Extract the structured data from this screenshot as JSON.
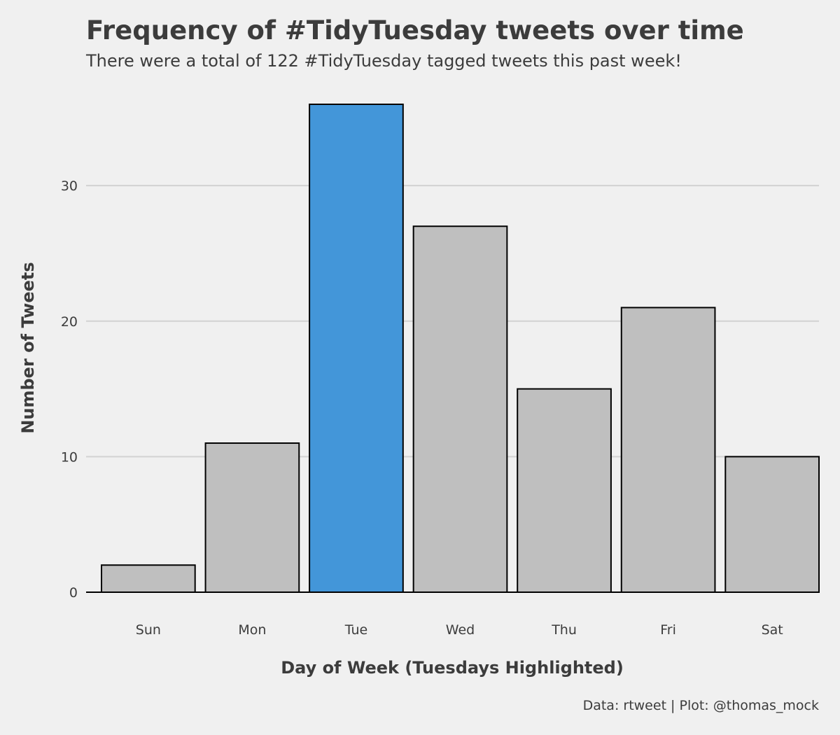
{
  "chart_data": {
    "type": "bar",
    "title": "Frequency of #TidyTuesday tweets over time",
    "subtitle": "There were a total of 122 #TidyTuesday tagged tweets this past week!",
    "caption": "Data: rtweet | Plot: @thomas_mock",
    "xlabel": "Day of Week (Tuesdays Highlighted)",
    "ylabel": "Number of Tweets",
    "categories": [
      "Sun",
      "Mon",
      "Tue",
      "Wed",
      "Thu",
      "Fri",
      "Sat"
    ],
    "values": [
      2,
      11,
      36,
      27,
      15,
      21,
      10
    ],
    "highlighted": [
      "Tue"
    ],
    "ylim": [
      0,
      36
    ],
    "y_ticks": [
      0,
      10,
      20,
      30
    ],
    "y_tick_labels": [
      "0",
      "10",
      "20",
      "30"
    ],
    "grid": "horizontal",
    "legend": "none",
    "colors": {
      "background": "#f0f0f0",
      "bar": "#bfbfbf",
      "highlight": "#4396d9",
      "bar_outline": "#000000",
      "grid": "#d2d2d2",
      "text": "#3c3c3c"
    }
  }
}
